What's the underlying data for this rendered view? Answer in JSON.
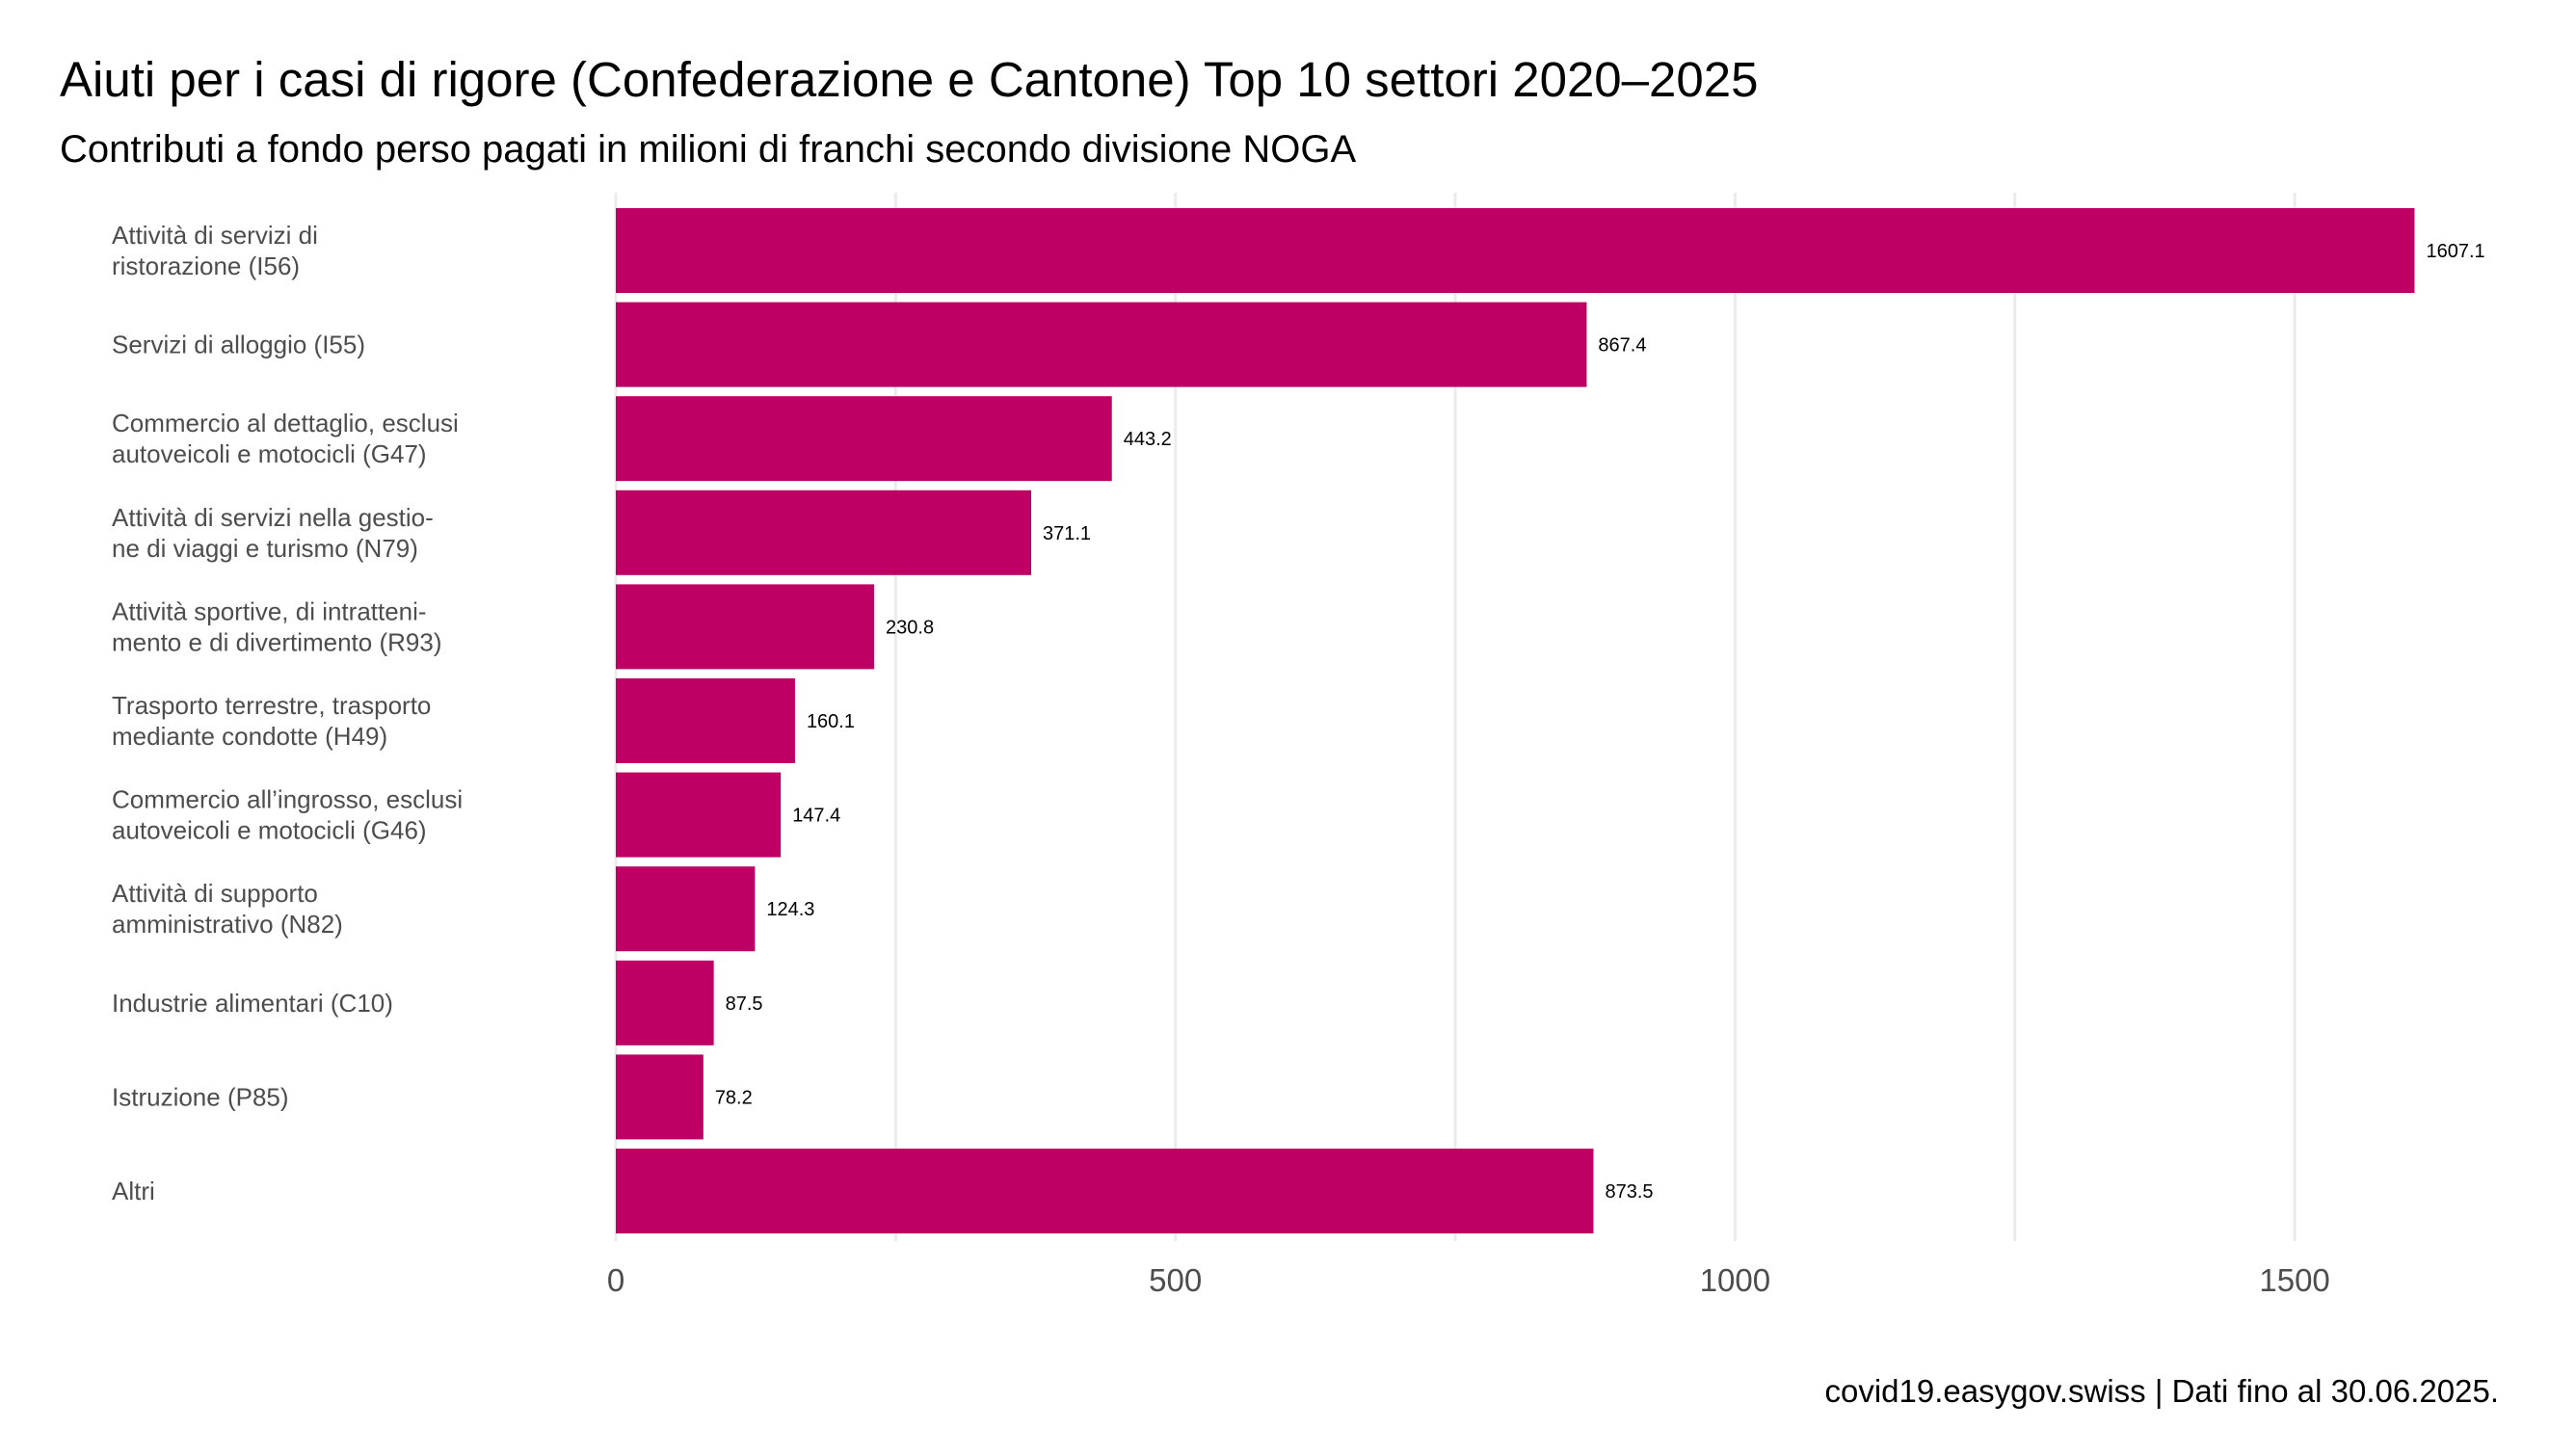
{
  "chart_data": {
    "type": "bar",
    "orientation": "horizontal",
    "title": "Aiuti per i casi di rigore (Confederazione e Cantone) Top 10 settori 2020–2025",
    "subtitle": "Contributi a fondo perso pagati in milioni di franchi secondo divisione NOGA",
    "caption": "covid19.easygov.swiss | Dati fino al 30.06.2025.",
    "categories": [
      [
        "Attività di servizi di",
        "ristorazione (I56)"
      ],
      [
        "Servizi di alloggio (I55)"
      ],
      [
        "Commercio al dettaglio, esclusi",
        "autoveicoli e motocicli (G47)"
      ],
      [
        "Attività di servizi nella gestio-",
        "ne di viaggi e turismo (N79)"
      ],
      [
        "Attività sportive, di intratteni-",
        "mento e di divertimento (R93)"
      ],
      [
        "Trasporto terrestre, trasporto",
        "mediante condotte (H49)"
      ],
      [
        "Commercio all’ingrosso, esclusi",
        "autoveicoli e motocicli (G46)"
      ],
      [
        "Attività di supporto",
        "amministrativo (N82)"
      ],
      [
        "Industrie alimentari (C10)"
      ],
      [
        "Istruzione (P85)"
      ],
      [
        "Altri"
      ]
    ],
    "values": [
      1607.1,
      867.4,
      443.2,
      371.1,
      230.8,
      160.1,
      147.4,
      124.3,
      87.5,
      78.2,
      873.5
    ],
    "value_labels": [
      "1607.1",
      "867.4",
      "443.2",
      "371.1",
      "230.8",
      "160.1",
      "147.4",
      "124.3",
      "87.5",
      "78.2",
      "873.5"
    ],
    "xlim": [
      0,
      1700
    ],
    "xticks": [
      0,
      500,
      1000,
      1500
    ],
    "xtick_labels": [
      "0",
      "500",
      "1000",
      "1500"
    ],
    "xlabel": "",
    "ylabel": "",
    "grid": true,
    "legend": "none",
    "bar_color": "#BE0064"
  }
}
